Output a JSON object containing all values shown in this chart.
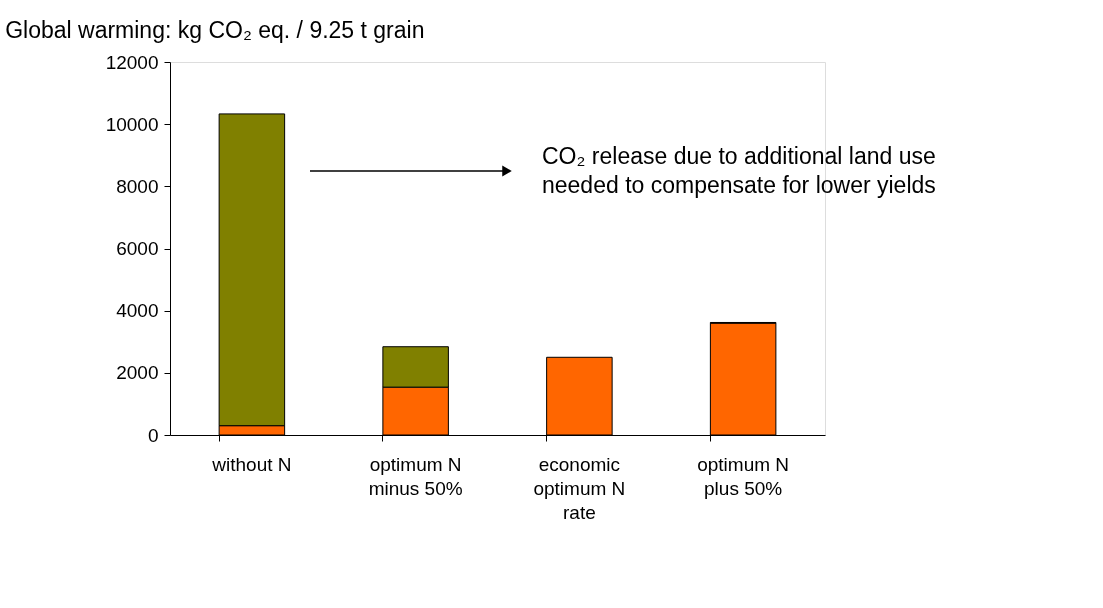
{
  "chart_data": {
    "type": "bar",
    "stacked": true,
    "title": "Global warming: kg CO₂ eq. / 9.25 t grain",
    "categories": [
      "without N",
      "optimum N\nminus 50%",
      "economic\noptimum N\nrate",
      "optimum N\nplus 50%"
    ],
    "series": [
      {
        "color": "#ff6600",
        "values": [
          300,
          1540,
          2500,
          3600
        ]
      },
      {
        "color": "#808000",
        "values": [
          10030,
          1300,
          0,
          20
        ]
      }
    ],
    "ylim": [
      0,
      12000
    ],
    "yticks": [
      0,
      2000,
      4000,
      6000,
      8000,
      10000,
      12000
    ],
    "annotations": [
      "CO₂ release due to additional land use\nneeded to compensate for lower yields"
    ],
    "grid": false,
    "legend": false
  }
}
